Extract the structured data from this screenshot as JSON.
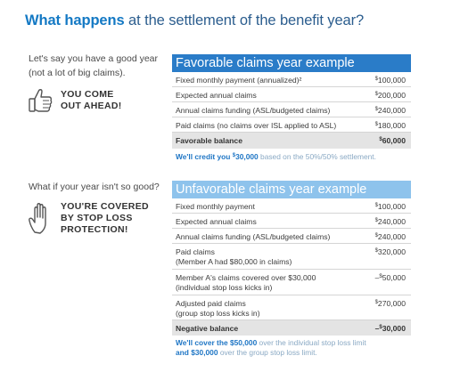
{
  "title": {
    "bold": "What happens",
    "rest": " at the settlement of the benefit year?"
  },
  "good_year": {
    "question_line1": "Let's say you have a good year",
    "question_line2": "(not a lot of big claims).",
    "icon": "thumbs-up-icon",
    "callout_line1": "YOU COME",
    "callout_line2": "OUT AHEAD!"
  },
  "bad_year": {
    "question": "What if your year isn't so good?",
    "icon": "raised-hand-icon",
    "callout_line1": "YOU'RE COVERED",
    "callout_line2": "BY STOP LOSS",
    "callout_line3": "PROTECTION!"
  },
  "favorable": {
    "header": "Favorable claims year example",
    "rows": [
      {
        "label": "Fixed monthly payment (annualized)²",
        "value": "100,000"
      },
      {
        "label": "Expected annual claims",
        "value": "200,000"
      },
      {
        "label": "Annual claims funding (ASL/budgeted claims)",
        "value": "240,000"
      },
      {
        "label": "Paid claims (no claims over ISL applied to ASL)",
        "value": "180,000"
      }
    ],
    "balance_label": "Favorable balance",
    "balance_value": "60,000",
    "note_bold1": "We'll credit you ",
    "note_bold_amount": "30,000",
    "note_rest": " based on the 50%/50% settlement."
  },
  "unfavorable": {
    "header": "Unfavorable claims year example",
    "rows": [
      {
        "label1": "Fixed monthly payment",
        "label2": "",
        "prefix": "",
        "value": "100,000"
      },
      {
        "label1": "Expected annual claims",
        "label2": "",
        "prefix": "",
        "value": "240,000"
      },
      {
        "label1": "Annual claims funding (ASL/budgeted claims)",
        "label2": "",
        "prefix": "",
        "value": "240,000"
      },
      {
        "label1": "Paid claims",
        "label2": "(Member A had $80,000 in claims)",
        "prefix": "",
        "value": "320,000"
      },
      {
        "label1": "Member A's claims covered over $30,000",
        "label2": "(individual stop loss kicks in)",
        "prefix": "–",
        "value": "50,000"
      },
      {
        "label1": "Adjusted paid claims",
        "label2": "(group stop loss kicks in)",
        "prefix": "",
        "value": "270,000"
      }
    ],
    "balance_label": "Negative balance",
    "balance_prefix": "–",
    "balance_value": "30,000",
    "note1_bold": "We'll cover the $50,000",
    "note1_rest": " over the individual stop loss limit",
    "note2_bold": "and $30,000",
    "note2_rest": " over the group stop loss limit."
  },
  "currency_symbol": "$",
  "colors": {
    "title_blue": "#1479c4",
    "header_dark": "#2a7cc8",
    "header_light": "#8ec3ec",
    "balance_bg": "#e4e4e4",
    "note_blue": "#1f76c5"
  }
}
